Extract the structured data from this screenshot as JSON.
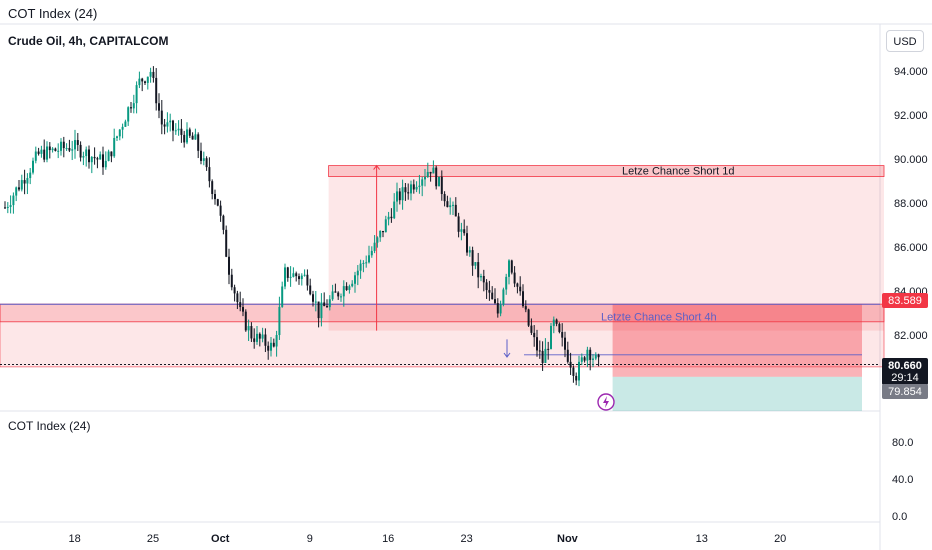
{
  "header": {
    "indicator_top": "COT Index (24)",
    "symbol_title": "Crude Oil, 4h, CAPITALCOM",
    "currency_button": "USD"
  },
  "lower_pane": {
    "label": "COT Index (24)"
  },
  "drawings": {
    "zone_1d_label": "Letze Chance Short 1d",
    "zone_4h_label": "Letzte Chance Short 4h",
    "zone_1d_range": [
      89.2,
      89.7
    ],
    "zone_4h_range": [
      82.6,
      83.4
    ],
    "zone_4h_bottom": 82.2,
    "horizontal_line": 83.4,
    "long_zone_range": [
      80.55,
      83.4
    ],
    "big_box_range": [
      82.2,
      89.7
    ]
  },
  "price_labels": {
    "level_1": "83.589",
    "last_price": "80.660",
    "countdown": "29:14",
    "level_2": "79.854"
  },
  "colors": {
    "up": "#089981",
    "down": "#131722",
    "short_zone": "#f23645",
    "line_blue": "#5b5fc7",
    "target_teal": "#26a69a",
    "accent_purple": "#9c27b0"
  },
  "chart_data": {
    "type": "candlestick",
    "title": "Crude Oil, 4h, CAPITALCOM",
    "ylim": [
      78.2,
      94.8
    ],
    "y_ticks": [
      "94.000",
      "92.000",
      "90.000",
      "88.000",
      "86.000",
      "84.000",
      "82.000"
    ],
    "y_tick_values": [
      94,
      92,
      90,
      88,
      86,
      84,
      82
    ],
    "x_ticks": [
      "18",
      "25",
      "Oct",
      "9",
      "16",
      "23",
      "Nov",
      "13",
      "20"
    ],
    "approx_close_path": [
      {
        "date": "Sep 15",
        "close": 87.8
      },
      {
        "date": "Sep 18",
        "close": 90.2
      },
      {
        "date": "Sep 21",
        "close": 90.6
      },
      {
        "date": "Sep 24",
        "close": 89.8
      },
      {
        "date": "Sep 27",
        "close": 93.5
      },
      {
        "date": "Sep 28",
        "close": 94.0
      },
      {
        "date": "Sep 29",
        "close": 91.6
      },
      {
        "date": "Oct 2",
        "close": 90.8
      },
      {
        "date": "Oct 4",
        "close": 88.0
      },
      {
        "date": "Oct 5",
        "close": 85.0
      },
      {
        "date": "Oct 6",
        "close": 83.0
      },
      {
        "date": "Oct 7",
        "close": 82.0
      },
      {
        "date": "Oct 9",
        "close": 81.4
      },
      {
        "date": "Oct 10",
        "close": 84.8
      },
      {
        "date": "Oct 12",
        "close": 84.6
      },
      {
        "date": "Oct 13",
        "close": 83.0
      },
      {
        "date": "Oct 16",
        "close": 84.6
      },
      {
        "date": "Oct 18",
        "close": 86.0
      },
      {
        "date": "Oct 20",
        "close": 88.2
      },
      {
        "date": "Oct 23",
        "close": 89.6
      },
      {
        "date": "Oct 25",
        "close": 87.6
      },
      {
        "date": "Oct 27",
        "close": 85.0
      },
      {
        "date": "Oct 29",
        "close": 83.0
      },
      {
        "date": "Oct 30",
        "close": 85.5
      },
      {
        "date": "Nov 1",
        "close": 82.0
      },
      {
        "date": "Nov 2",
        "close": 80.8
      },
      {
        "date": "Nov 3",
        "close": 82.5
      },
      {
        "date": "Nov 5",
        "close": 80.2
      },
      {
        "date": "Nov 6",
        "close": 81.4
      },
      {
        "date": "Nov 7",
        "close": 80.66
      }
    ],
    "lower_pane": {
      "title": "COT Index (24)",
      "y_ticks": [
        "80.0",
        "40.0",
        "0.0"
      ],
      "y_tick_values": [
        80,
        40,
        0
      ]
    }
  }
}
